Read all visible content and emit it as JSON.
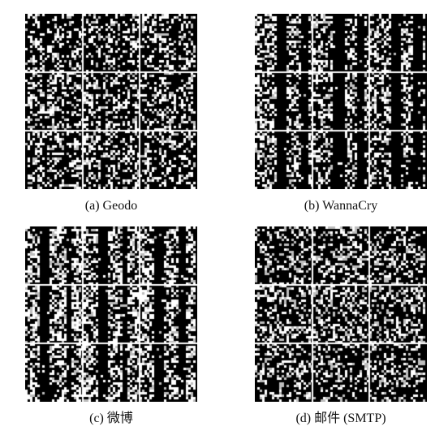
{
  "figure": {
    "panels": [
      {
        "id": "a",
        "caption": "(a) Geodo",
        "texture": "geodo"
      },
      {
        "id": "b",
        "caption": "(b) WannaCry",
        "texture": "wannacry"
      },
      {
        "id": "c",
        "caption": "(c) 微博",
        "texture": "weibo"
      },
      {
        "id": "d",
        "caption": "(d) 邮件 (SMTP)",
        "texture": "smtp"
      }
    ],
    "grid_rows": 3,
    "grid_cols": 3,
    "grid_line_color": "#ffffff",
    "pixel_on_color": "#ffffff",
    "pixel_mid_color": "#bdbdbd",
    "background_color": "#000000"
  }
}
